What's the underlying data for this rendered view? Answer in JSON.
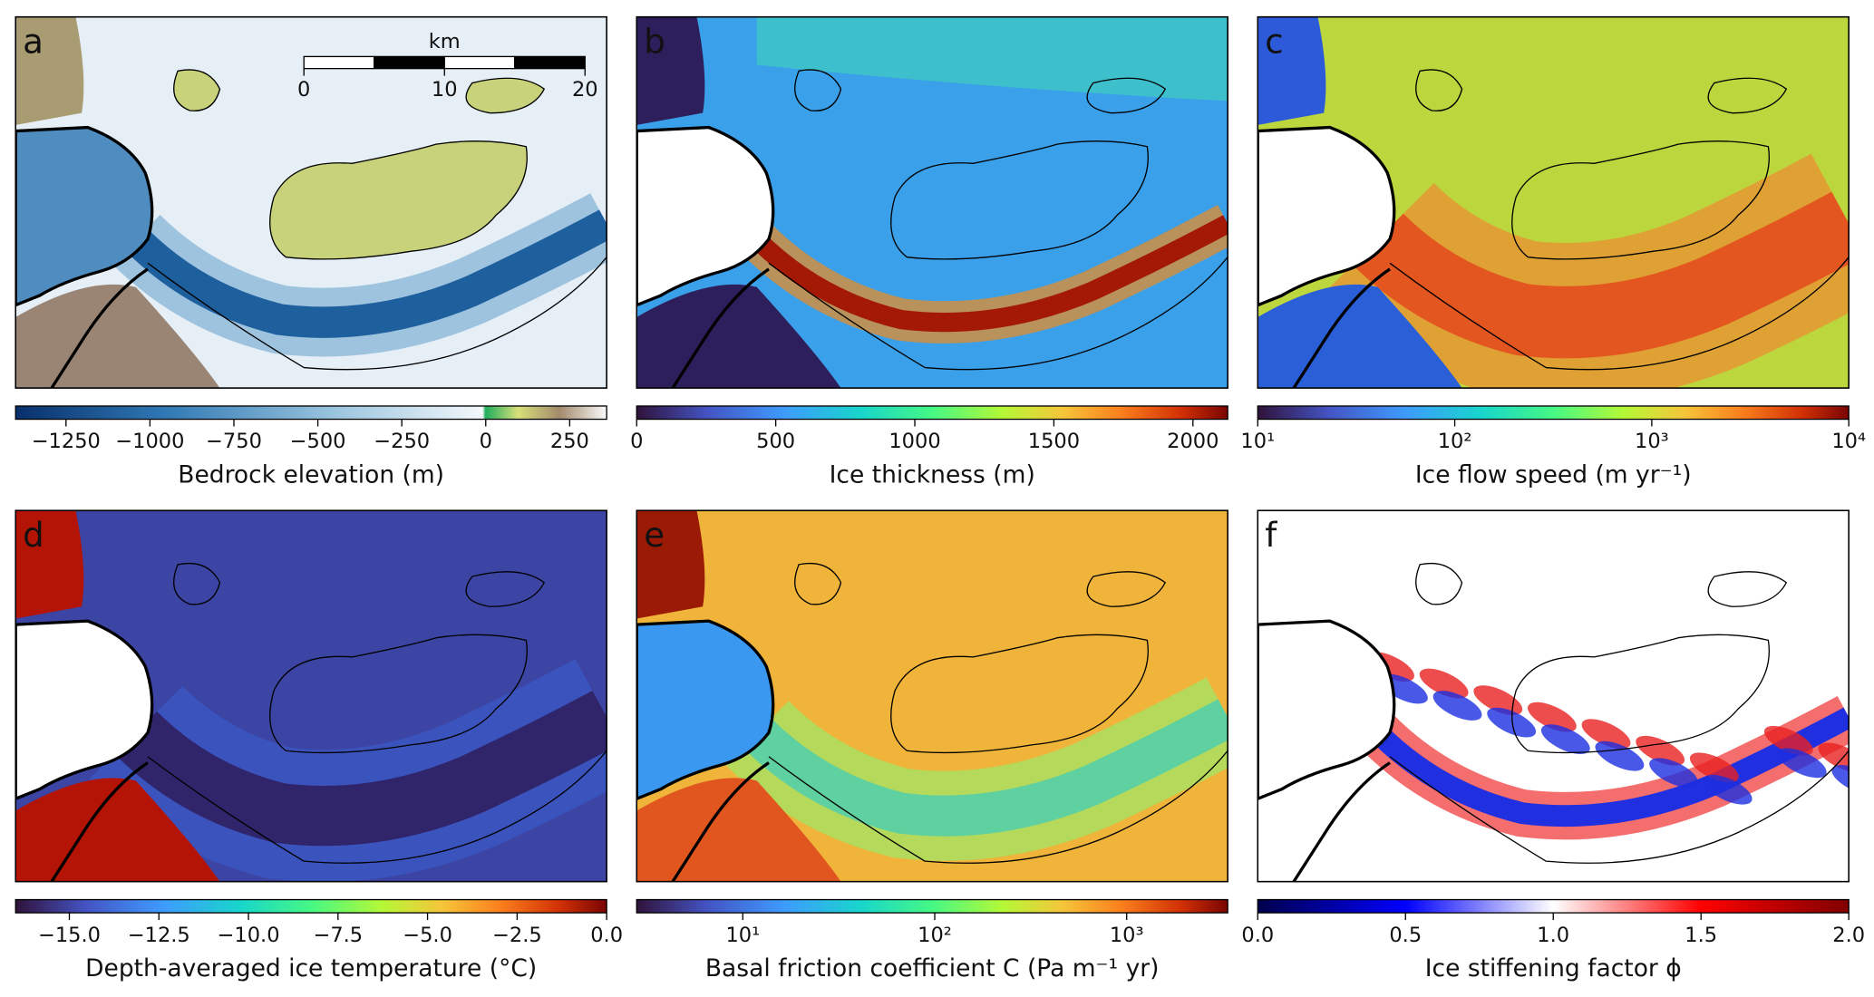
{
  "chart_data": [
    {
      "type": "heatmap",
      "title": "a",
      "colormap": "topo",
      "colorbar_label": "Bedrock elevation (m)",
      "log": false,
      "xlim": [
        -1400,
        360
      ],
      "xticks": [
        {
          "value": -1250,
          "label": "−1250"
        },
        {
          "value": -1000,
          "label": "−1000"
        },
        {
          "value": -750,
          "label": "−750"
        },
        {
          "value": -500,
          "label": "−500"
        },
        {
          "value": -250,
          "label": "−250"
        },
        0,
        250
      ],
      "scale_bar": {
        "label": "km",
        "xlim": [
          0,
          20
        ],
        "xticks": [
          0,
          10,
          20
        ]
      }
    },
    {
      "type": "heatmap",
      "title": "b",
      "colormap": "turbo",
      "colorbar_label": "Ice thickness (m)",
      "log": false,
      "xlim": [
        0,
        2125
      ],
      "xticks": [
        0,
        500,
        1000,
        1500,
        2000
      ]
    },
    {
      "type": "heatmap",
      "title": "c",
      "colormap": "turbo",
      "colorbar_label": "Ice flow speed (m yr⁻¹)",
      "log": true,
      "xlim": [
        10,
        10000
      ],
      "xticks": [
        {
          "value": 10,
          "label": "10¹"
        },
        {
          "value": 100,
          "label": "10²"
        },
        {
          "value": 1000,
          "label": "10³"
        },
        {
          "value": 10000,
          "label": "10⁴"
        }
      ]
    },
    {
      "type": "heatmap",
      "title": "d",
      "colormap": "turbo",
      "colorbar_label": "Depth-averaged ice temperature (°C)",
      "log": false,
      "xlim": [
        -16.5,
        0
      ],
      "xticks": [
        {
          "value": -15,
          "label": "−15.0"
        },
        {
          "value": -12.5,
          "label": "−12.5"
        },
        {
          "value": -10,
          "label": "−10.0"
        },
        {
          "value": -7.5,
          "label": "−7.5"
        },
        {
          "value": -5,
          "label": "−5.0"
        },
        {
          "value": -2.5,
          "label": "−2.5"
        },
        {
          "value": 0,
          "label": "0.0"
        }
      ]
    },
    {
      "type": "heatmap",
      "title": "e",
      "colormap": "turbo",
      "colorbar_label": "Basal friction coefficient C (Pa m⁻¹ yr)",
      "log": true,
      "xlim": [
        2.8,
        3360
      ],
      "xticks": [
        {
          "value": 10,
          "label": "10¹"
        },
        {
          "value": 100,
          "label": "10²"
        },
        {
          "value": 1000,
          "label": "10³"
        }
      ]
    },
    {
      "type": "heatmap",
      "title": "f",
      "colormap": "seismic",
      "colorbar_label": "Ice stiffening factor ϕ",
      "log": false,
      "xlim": [
        0,
        2
      ],
      "xticks": [
        {
          "value": 0,
          "label": "0.0"
        },
        0.5,
        {
          "value": 1,
          "label": "1.0"
        },
        1.5,
        {
          "value": 2,
          "label": "2.0"
        }
      ]
    }
  ]
}
